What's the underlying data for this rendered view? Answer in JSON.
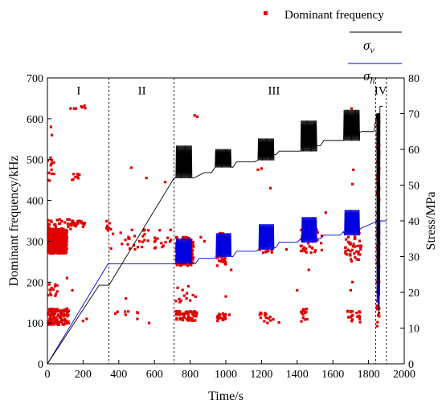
{
  "chart_data": {
    "type": "scatter+line",
    "xlabel": "Time/s",
    "ylabel_left": "Dominant frequency/kHz",
    "ylabel_right": "Stress/MPa",
    "xlim": [
      0,
      2000
    ],
    "ylim_left": [
      0,
      700
    ],
    "ylim_right": [
      0,
      80
    ],
    "x_ticks": [
      0,
      200,
      400,
      600,
      800,
      1000,
      1200,
      1400,
      1600,
      1800,
      2000
    ],
    "y_left_ticks": [
      0,
      100,
      200,
      300,
      400,
      500,
      600,
      700
    ],
    "y_right_ticks": [
      0,
      10,
      20,
      30,
      40,
      50,
      60,
      70,
      80
    ],
    "grid": false,
    "legend_position": "top-right",
    "legend": [
      {
        "label": "Dominant frequency",
        "marker": "square",
        "color": "#e00000"
      },
      {
        "label": "σv",
        "symbol": "σ",
        "subscript": "v",
        "color": "#000000"
      },
      {
        "label": "σh",
        "symbol": "σ",
        "subscript": "h",
        "color": "#0000e0"
      }
    ],
    "stage_dividers": [
      345,
      710,
      1840,
      1900
    ],
    "stages": [
      {
        "label": "I",
        "x": 175,
        "y_left": 660
      },
      {
        "label": "II",
        "x": 530,
        "y_left": 660
      },
      {
        "label": "III",
        "x": 1270,
        "y_left": 660
      },
      {
        "label": "IV",
        "x": 1868,
        "y_left": 660
      }
    ],
    "sigma_v": {
      "name": "σv",
      "color": "#000000",
      "base": [
        [
          0,
          0
        ],
        [
          290,
          22
        ],
        [
          345,
          22
        ],
        [
          710,
          52
        ],
        [
          800,
          52
        ],
        [
          820,
          52
        ],
        [
          880,
          53.5
        ],
        [
          920,
          53.5
        ],
        [
          940,
          55
        ],
        [
          1040,
          55
        ],
        [
          1060,
          56.5
        ],
        [
          1160,
          56.5
        ],
        [
          1180,
          58.5
        ],
        [
          1280,
          58.5
        ],
        [
          1300,
          59.5
        ],
        [
          1400,
          59.5
        ],
        [
          1420,
          61
        ],
        [
          1530,
          61
        ],
        [
          1550,
          62.5
        ],
        [
          1640,
          62.5
        ],
        [
          1660,
          64.5
        ],
        [
          1740,
          64.5
        ],
        [
          1760,
          65
        ],
        [
          1830,
          65
        ],
        [
          1850,
          72
        ],
        [
          1880,
          72
        ]
      ],
      "oscillations": [
        {
          "x0": 720,
          "x1": 810,
          "low": 52,
          "high": 61
        },
        {
          "x0": 940,
          "x1": 1030,
          "low": 55,
          "high": 60
        },
        {
          "x0": 1180,
          "x1": 1270,
          "low": 57,
          "high": 63
        },
        {
          "x0": 1420,
          "x1": 1510,
          "low": 59.5,
          "high": 68
        },
        {
          "x0": 1660,
          "x1": 1750,
          "low": 62.5,
          "high": 71
        }
      ],
      "failure": {
        "x0": 1846,
        "x1": 1864,
        "low": 12,
        "high": 70
      }
    },
    "sigma_h": {
      "name": "σh",
      "color": "#0000e0",
      "base": [
        [
          0,
          0
        ],
        [
          340,
          28
        ],
        [
          710,
          28
        ],
        [
          830,
          28
        ],
        [
          850,
          29.5
        ],
        [
          940,
          29.5
        ],
        [
          960,
          30
        ],
        [
          1040,
          30
        ],
        [
          1060,
          31.5
        ],
        [
          1170,
          31.5
        ],
        [
          1190,
          32.5
        ],
        [
          1280,
          32.5
        ],
        [
          1300,
          34
        ],
        [
          1400,
          34
        ],
        [
          1420,
          35
        ],
        [
          1530,
          35
        ],
        [
          1550,
          36
        ],
        [
          1640,
          36
        ],
        [
          1660,
          37
        ],
        [
          1740,
          37
        ],
        [
          1760,
          38
        ],
        [
          1830,
          39.5
        ],
        [
          1860,
          40
        ],
        [
          1900,
          40
        ]
      ],
      "oscillations": [
        {
          "x0": 720,
          "x1": 810,
          "low": 28,
          "high": 35
        },
        {
          "x0": 945,
          "x1": 1030,
          "low": 30,
          "high": 36.5
        },
        {
          "x0": 1185,
          "x1": 1270,
          "low": 32,
          "high": 39
        },
        {
          "x0": 1425,
          "x1": 1510,
          "low": 34,
          "high": 41
        },
        {
          "x0": 1665,
          "x1": 1750,
          "low": 36,
          "high": 43
        }
      ],
      "failure": {
        "x0": 1846,
        "x1": 1864,
        "low": 15,
        "high": 40
      }
    },
    "dominant_frequency": {
      "name": "Dominant frequency",
      "color": "#e00000",
      "clusters": [
        {
          "x": [
            0,
            110
          ],
          "y": [
            270,
            330
          ],
          "n": 420
        },
        {
          "x": [
            0,
            120
          ],
          "y": [
            95,
            135
          ],
          "n": 120
        },
        {
          "x": [
            0,
            130
          ],
          "y": [
            330,
            355
          ],
          "n": 30
        },
        {
          "x": [
            0,
            60
          ],
          "y": [
            165,
            195
          ],
          "n": 14
        },
        {
          "x": [
            0,
            40
          ],
          "y": [
            440,
            510
          ],
          "n": 14
        },
        {
          "x": [
            130,
            220
          ],
          "y": [
            335,
            350
          ],
          "n": 25
        },
        {
          "x": [
            120,
            180
          ],
          "y": [
            450,
            465
          ],
          "n": 8
        },
        {
          "x": [
            330,
            360
          ],
          "y": [
            325,
            350
          ],
          "n": 8
        },
        {
          "x": [
            350,
            700
          ],
          "y": [
            280,
            330
          ],
          "n": 40
        },
        {
          "x": [
            380,
            520
          ],
          "y": [
            105,
            130
          ],
          "n": 8
        },
        {
          "x": [
            720,
            820
          ],
          "y": [
            240,
            310
          ],
          "n": 140
        },
        {
          "x": [
            720,
            840
          ],
          "y": [
            105,
            130
          ],
          "n": 60
        },
        {
          "x": [
            720,
            840
          ],
          "y": [
            150,
            200
          ],
          "n": 10
        },
        {
          "x": [
            950,
            1000
          ],
          "y": [
            240,
            320
          ],
          "n": 40
        },
        {
          "x": [
            950,
            1000
          ],
          "y": [
            105,
            125
          ],
          "n": 20
        },
        {
          "x": [
            1190,
            1260
          ],
          "y": [
            270,
            310
          ],
          "n": 25
        },
        {
          "x": [
            1190,
            1300
          ],
          "y": [
            100,
            125
          ],
          "n": 15
        },
        {
          "x": [
            1420,
            1540
          ],
          "y": [
            270,
            330
          ],
          "n": 35
        },
        {
          "x": [
            1420,
            1460
          ],
          "y": [
            100,
            135
          ],
          "n": 15
        },
        {
          "x": [
            1670,
            1760
          ],
          "y": [
            250,
            330
          ],
          "n": 45
        },
        {
          "x": [
            1670,
            1760
          ],
          "y": [
            100,
            130
          ],
          "n": 20
        },
        {
          "x": [
            1846,
            1860
          ],
          "y": [
            90,
            600
          ],
          "n": 90
        }
      ],
      "points": [
        [
          130,
          625
        ],
        [
          150,
          625
        ],
        [
          160,
          625
        ],
        [
          190,
          630
        ],
        [
          195,
          628
        ],
        [
          208,
          632
        ],
        [
          212,
          626
        ],
        [
          825,
          608
        ],
        [
          840,
          605
        ],
        [
          1705,
          625
        ],
        [
          470,
          480
        ],
        [
          555,
          455
        ],
        [
          660,
          445
        ],
        [
          1180,
          475
        ],
        [
          1200,
          478
        ],
        [
          1715,
          475
        ],
        [
          1710,
          440
        ],
        [
          20,
          580
        ],
        [
          25,
          560
        ],
        [
          110,
          210
        ],
        [
          140,
          180
        ],
        [
          200,
          105
        ],
        [
          220,
          110
        ],
        [
          440,
          160
        ],
        [
          570,
          100
        ],
        [
          1000,
          165
        ],
        [
          1020,
          120
        ],
        [
          1030,
          230
        ],
        [
          780,
          160
        ],
        [
          800,
          155
        ],
        [
          790,
          190
        ],
        [
          1400,
          180
        ],
        [
          1700,
          180
        ],
        [
          1710,
          200
        ],
        [
          1720,
          270
        ],
        [
          1560,
          370
        ],
        [
          1450,
          310
        ],
        [
          1465,
          230
        ],
        [
          1250,
          430
        ],
        [
          860,
          310
        ],
        [
          880,
          300
        ],
        [
          1340,
          280
        ]
      ]
    }
  }
}
